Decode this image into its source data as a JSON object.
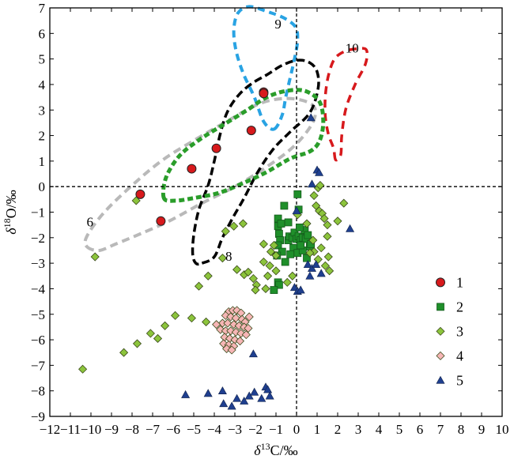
{
  "chart_data": {
    "type": "scatter",
    "xlabel": "δ13C/‰",
    "ylabel": "δ18O/‰",
    "xlim": [
      -12,
      10
    ],
    "ylim": [
      -9,
      7
    ],
    "x_ticks": [
      "−12",
      "−11",
      "−10",
      "−9",
      "−8",
      "−7",
      "−6",
      "−5",
      "−4",
      "−3",
      "−2",
      "−1",
      "0",
      "1",
      "2",
      "3",
      "4",
      "5",
      "6",
      "7",
      "8",
      "9",
      "10"
    ],
    "y_ticks": [
      "−9",
      "−8",
      "−7",
      "−6",
      "−5",
      "−4",
      "−3",
      "−2",
      "−1",
      "0",
      "1",
      "2",
      "3",
      "4",
      "5",
      "6",
      "7"
    ],
    "reference_lines": {
      "x": 0,
      "y": 0
    },
    "legend_position": "right",
    "legend": [
      "1",
      "2",
      "3",
      "4",
      "5"
    ],
    "series": [
      {
        "name": "1",
        "marker": "circle",
        "color": "#d7191c",
        "points": [
          [
            -7.6,
            -0.3
          ],
          [
            -6.6,
            -1.35
          ],
          [
            -5.1,
            0.7
          ],
          [
            -3.9,
            1.5
          ],
          [
            -1.6,
            3.7
          ],
          [
            -1.6,
            3.65
          ],
          [
            -2.2,
            2.2
          ]
        ]
      },
      {
        "name": "2",
        "marker": "square",
        "color": "#1f8f2a",
        "points": [
          [
            0.05,
            -0.3
          ],
          [
            0.1,
            -0.9
          ],
          [
            -0.6,
            -0.75
          ],
          [
            -0.9,
            -1.25
          ],
          [
            -0.9,
            -1.55
          ],
          [
            -0.75,
            -1.45
          ],
          [
            -0.85,
            -1.85
          ],
          [
            -0.8,
            -2.1
          ],
          [
            -0.9,
            -2.3
          ],
          [
            -0.7,
            -2.55
          ],
          [
            -0.95,
            -2.7
          ],
          [
            -0.55,
            -2.95
          ],
          [
            -0.4,
            -2.1
          ],
          [
            -0.35,
            -1.95
          ],
          [
            -0.2,
            -2.0
          ],
          [
            -0.1,
            -1.8
          ],
          [
            0.0,
            -2.05
          ],
          [
            0.1,
            -1.95
          ],
          [
            0.2,
            -2.1
          ],
          [
            0.3,
            -2.0
          ],
          [
            0.45,
            -2.05
          ],
          [
            0.4,
            -1.7
          ],
          [
            0.15,
            -1.6
          ],
          [
            -0.15,
            -2.4
          ],
          [
            0.05,
            -2.6
          ],
          [
            0.3,
            -2.5
          ],
          [
            0.5,
            -2.8
          ],
          [
            0.2,
            -2.3
          ],
          [
            -0.3,
            -2.65
          ],
          [
            0.55,
            -1.9
          ],
          [
            0.65,
            -2.35
          ],
          [
            0.7,
            -2.25
          ],
          [
            -0.9,
            -3.75
          ],
          [
            -0.85,
            -3.85
          ],
          [
            -1.1,
            -4.05
          ],
          [
            -0.4,
            -1.4
          ]
        ]
      },
      {
        "name": "3",
        "marker": "diamond",
        "color": "#8cc43c",
        "points": [
          [
            -10.4,
            -7.15
          ],
          [
            -8.4,
            -6.5
          ],
          [
            -7.75,
            -6.15
          ],
          [
            -7.1,
            -5.75
          ],
          [
            -6.75,
            -5.95
          ],
          [
            -6.4,
            -5.45
          ],
          [
            -5.9,
            -5.05
          ],
          [
            -5.1,
            -5.15
          ],
          [
            -4.4,
            -5.3
          ],
          [
            -4.75,
            -3.9
          ],
          [
            -4.3,
            -3.5
          ],
          [
            -3.6,
            -2.8
          ],
          [
            -3.45,
            -1.75
          ],
          [
            -3.05,
            -1.55
          ],
          [
            -2.6,
            -1.45
          ],
          [
            -2.9,
            -3.25
          ],
          [
            -2.55,
            -3.45
          ],
          [
            -2.35,
            -3.35
          ],
          [
            -2.1,
            -3.6
          ],
          [
            -1.95,
            -3.85
          ],
          [
            -2.0,
            -4.05
          ],
          [
            -1.5,
            -4.0
          ],
          [
            -1.4,
            -3.5
          ],
          [
            -1.0,
            -3.3
          ],
          [
            -1.3,
            -3.1
          ],
          [
            -1.6,
            -2.95
          ],
          [
            -1.25,
            -2.55
          ],
          [
            -1.0,
            -2.7
          ],
          [
            -0.45,
            -3.75
          ],
          [
            -0.2,
            -3.5
          ],
          [
            0.05,
            -1.1
          ],
          [
            0.5,
            -1.45
          ],
          [
            0.85,
            -0.35
          ],
          [
            1.05,
            -0.05
          ],
          [
            1.15,
            0.05
          ],
          [
            0.95,
            -0.75
          ],
          [
            1.1,
            -0.95
          ],
          [
            1.25,
            -1.05
          ],
          [
            1.35,
            -1.25
          ],
          [
            1.5,
            -1.5
          ],
          [
            2.0,
            -1.35
          ],
          [
            2.3,
            -0.65
          ],
          [
            1.2,
            -2.4
          ],
          [
            0.85,
            -2.55
          ],
          [
            1.05,
            -2.85
          ],
          [
            1.4,
            -3.1
          ],
          [
            1.55,
            -2.75
          ],
          [
            1.6,
            -3.3
          ],
          [
            -7.8,
            -0.55
          ],
          [
            -9.8,
            -2.75
          ],
          [
            -1.6,
            -2.25
          ],
          [
            -1.1,
            -2.3
          ],
          [
            0.65,
            -2.6
          ],
          [
            1.5,
            -1.95
          ],
          [
            0.8,
            -2.1
          ]
        ]
      },
      {
        "name": "4",
        "marker": "diamond",
        "color": "#f6b6b6",
        "points": [
          [
            -3.3,
            -4.9
          ],
          [
            -3.1,
            -4.85
          ],
          [
            -2.9,
            -4.85
          ],
          [
            -2.7,
            -4.95
          ],
          [
            -3.45,
            -5.05
          ],
          [
            -3.2,
            -5.1
          ],
          [
            -2.95,
            -5.15
          ],
          [
            -2.65,
            -5.2
          ],
          [
            -2.5,
            -5.3
          ],
          [
            -3.6,
            -5.35
          ],
          [
            -3.35,
            -5.35
          ],
          [
            -3.05,
            -5.4
          ],
          [
            -2.8,
            -5.45
          ],
          [
            -2.55,
            -5.5
          ],
          [
            -2.35,
            -5.55
          ],
          [
            -3.7,
            -5.6
          ],
          [
            -3.45,
            -5.65
          ],
          [
            -3.2,
            -5.65
          ],
          [
            -2.95,
            -5.7
          ],
          [
            -2.7,
            -5.75
          ],
          [
            -2.45,
            -5.8
          ],
          [
            -3.5,
            -5.9
          ],
          [
            -3.25,
            -5.95
          ],
          [
            -3.0,
            -6.0
          ],
          [
            -2.75,
            -6.05
          ],
          [
            -3.55,
            -6.15
          ],
          [
            -3.3,
            -6.2
          ],
          [
            -3.05,
            -6.25
          ],
          [
            -3.4,
            -6.35
          ],
          [
            -3.15,
            -6.4
          ],
          [
            -3.9,
            -5.4
          ],
          [
            -2.3,
            -5.1
          ]
        ]
      },
      {
        "name": "5",
        "marker": "triangle",
        "color": "#1f3f8f",
        "points": [
          [
            0.7,
            2.7
          ],
          [
            1.0,
            0.65
          ],
          [
            1.1,
            0.55
          ],
          [
            0.75,
            0.1
          ],
          [
            0.0,
            -0.95
          ],
          [
            2.6,
            -1.65
          ],
          [
            0.55,
            -3.05
          ],
          [
            0.75,
            -3.2
          ],
          [
            0.95,
            -3.05
          ],
          [
            0.65,
            -3.5
          ],
          [
            1.2,
            -3.4
          ],
          [
            -0.1,
            -3.95
          ],
          [
            0.05,
            -4.1
          ],
          [
            0.2,
            -4.05
          ],
          [
            -2.1,
            -6.55
          ],
          [
            -5.4,
            -8.15
          ],
          [
            -4.3,
            -8.1
          ],
          [
            -3.6,
            -8.0
          ],
          [
            -3.55,
            -8.5
          ],
          [
            -3.15,
            -8.6
          ],
          [
            -2.9,
            -8.3
          ],
          [
            -2.55,
            -8.4
          ],
          [
            -2.3,
            -8.2
          ],
          [
            -1.5,
            -7.85
          ],
          [
            -1.4,
            -7.95
          ],
          [
            -1.3,
            -8.2
          ],
          [
            -1.7,
            -8.3
          ],
          [
            -2.05,
            -8.05
          ]
        ]
      }
    ],
    "regions": [
      {
        "label": "6",
        "color": "#b9b9b9",
        "dash": "gray",
        "points": [
          [
            -10.2,
            -2.35
          ],
          [
            -9.6,
            -2.5
          ],
          [
            -8.8,
            -2.25
          ],
          [
            -7.6,
            -1.85
          ],
          [
            -6.2,
            -1.35
          ],
          [
            -4.6,
            -0.65
          ],
          [
            -3.0,
            0.0
          ],
          [
            -1.4,
            0.8
          ],
          [
            -0.1,
            1.6
          ],
          [
            0.75,
            2.45
          ],
          [
            0.9,
            3.05
          ],
          [
            0.4,
            3.35
          ],
          [
            -0.6,
            3.45
          ],
          [
            -1.8,
            3.25
          ],
          [
            -3.3,
            2.6
          ],
          [
            -4.9,
            1.85
          ],
          [
            -6.5,
            1.05
          ],
          [
            -8.0,
            0.05
          ],
          [
            -9.4,
            -1.05
          ],
          [
            -10.2,
            -1.95
          ],
          [
            -10.2,
            -2.35
          ]
        ]
      },
      {
        "label": "8",
        "color": "#000000",
        "dash": "black",
        "points": [
          [
            -4.6,
            -3.0
          ],
          [
            -4.0,
            -2.75
          ],
          [
            -3.6,
            -2.0
          ],
          [
            -3.05,
            -1.15
          ],
          [
            -2.55,
            -0.45
          ],
          [
            -1.9,
            0.55
          ],
          [
            -1.15,
            1.45
          ],
          [
            -0.3,
            2.15
          ],
          [
            0.65,
            2.9
          ],
          [
            1.05,
            3.85
          ],
          [
            1.0,
            4.5
          ],
          [
            0.65,
            4.85
          ],
          [
            0.05,
            4.95
          ],
          [
            -0.7,
            4.75
          ],
          [
            -1.4,
            4.4
          ],
          [
            -2.15,
            4.05
          ],
          [
            -2.8,
            3.6
          ],
          [
            -3.35,
            2.95
          ],
          [
            -3.7,
            2.1
          ],
          [
            -4.0,
            1.0
          ],
          [
            -4.3,
            0.05
          ],
          [
            -4.75,
            -0.9
          ],
          [
            -5.0,
            -1.9
          ],
          [
            -5.05,
            -2.65
          ],
          [
            -4.9,
            -3.0
          ],
          [
            -4.6,
            -3.0
          ]
        ]
      },
      {
        "label": "9",
        "color": "#29a3e3",
        "dash": "blue",
        "points": [
          [
            -1.1,
            2.25
          ],
          [
            -0.7,
            2.8
          ],
          [
            -0.5,
            3.6
          ],
          [
            -0.1,
            5.0
          ],
          [
            0.05,
            5.75
          ],
          [
            -0.05,
            6.25
          ],
          [
            -0.6,
            6.6
          ],
          [
            -1.4,
            6.85
          ],
          [
            -2.3,
            7.05
          ],
          [
            -2.85,
            6.8
          ],
          [
            -3.05,
            6.15
          ],
          [
            -2.95,
            5.35
          ],
          [
            -2.6,
            4.45
          ],
          [
            -2.05,
            3.5
          ],
          [
            -1.6,
            2.55
          ],
          [
            -1.1,
            2.25
          ]
        ]
      },
      {
        "label": "10",
        "color": "#d7191c",
        "dash": "red",
        "points": [
          [
            1.9,
            1.05
          ],
          [
            1.8,
            1.5
          ],
          [
            1.55,
            2.05
          ],
          [
            1.4,
            2.75
          ],
          [
            1.4,
            3.55
          ],
          [
            1.55,
            4.35
          ],
          [
            1.85,
            5.0
          ],
          [
            2.35,
            5.3
          ],
          [
            2.95,
            5.4
          ],
          [
            3.4,
            5.35
          ],
          [
            3.35,
            4.8
          ],
          [
            2.85,
            4.0
          ],
          [
            2.4,
            3.05
          ],
          [
            2.2,
            2.0
          ],
          [
            2.15,
            1.25
          ],
          [
            1.9,
            1.05
          ]
        ]
      },
      {
        "label": "",
        "color": "#2a9d2a",
        "dash": "green",
        "points": [
          [
            -6.45,
            -0.45
          ],
          [
            -6.35,
            0.35
          ],
          [
            -5.7,
            1.2
          ],
          [
            -4.7,
            1.85
          ],
          [
            -3.5,
            2.45
          ],
          [
            -2.4,
            3.0
          ],
          [
            -1.45,
            3.5
          ],
          [
            -0.5,
            3.75
          ],
          [
            0.4,
            3.75
          ],
          [
            1.1,
            3.35
          ],
          [
            1.3,
            2.6
          ],
          [
            1.15,
            1.85
          ],
          [
            0.7,
            1.4
          ],
          [
            -0.3,
            1.1
          ],
          [
            -1.5,
            0.55
          ],
          [
            -2.7,
            0.1
          ],
          [
            -3.8,
            -0.25
          ],
          [
            -5.0,
            -0.45
          ],
          [
            -5.9,
            -0.55
          ],
          [
            -6.45,
            -0.45
          ]
        ]
      }
    ]
  }
}
